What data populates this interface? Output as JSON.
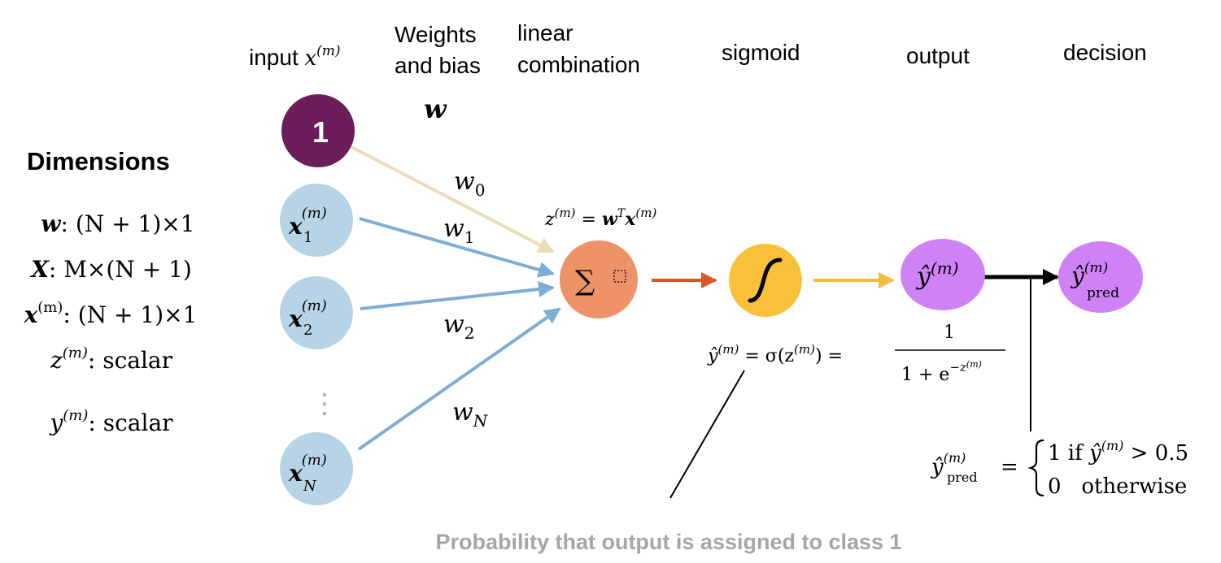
{
  "headers": {
    "input_prefix": "input ",
    "input_var": "x",
    "input_sup": "(m)",
    "weights_line1": "Weights",
    "weights_line2": "and bias",
    "linear_line1": "linear",
    "linear_line2": "combination",
    "sigmoid": "sigmoid",
    "output": "output",
    "decision": "decision"
  },
  "weight_symbol": "w",
  "dimensions": {
    "title": "Dimensions",
    "rows": [
      {
        "sym": "w",
        "sup": "",
        "bold": true,
        "rest": ": (N + 1)×1"
      },
      {
        "sym": "X",
        "sup": "",
        "bold": true,
        "rest": ": M×(N + 1)"
      },
      {
        "sym": "x",
        "sup": "(m)",
        "bold": true,
        "rest": ": (N + 1)×1"
      },
      {
        "sym": "z",
        "sup": "(m)",
        "bold": false,
        "rest": ": scalar"
      },
      {
        "sym": "y",
        "sup": "(m)",
        "bold": false,
        "rest": ": scalar"
      }
    ]
  },
  "nodes": {
    "bias": {
      "label": "1"
    },
    "inputs": [
      {
        "var": "x",
        "sup": "(m)",
        "sub": "1"
      },
      {
        "var": "x",
        "sup": "(m)",
        "sub": "2"
      },
      {
        "var": "x",
        "sup": "(m)",
        "sub": "N"
      }
    ],
    "ellipsis": "⋮",
    "sum": {
      "symbol": "∑",
      "box": "⬚"
    },
    "output": {
      "var": "ŷ",
      "sup": "(m)"
    },
    "decision": {
      "var": "ŷ",
      "sup": "(m)",
      "sub": "pred"
    }
  },
  "weights": [
    {
      "var": "w",
      "sub": "0"
    },
    {
      "var": "w",
      "sub": "1"
    },
    {
      "var": "w",
      "sub": "2"
    },
    {
      "var": "w",
      "sub": "N"
    }
  ],
  "equations": {
    "z_eq": {
      "lhs": "z",
      "lhs_sup": "(m)",
      "eq": " = ",
      "w": "w",
      "w_sup": "T",
      "x": "x",
      "x_sup": "(m)"
    },
    "sigmoid_eq": {
      "yhat": "ŷ",
      "sup": "(m)",
      "mid": " = σ(z",
      "mid_sup": "(m)",
      "close": ") = ",
      "numer": "1",
      "denom": "1 + e",
      "denom_sup": "−z",
      "denom_sup2": "(m)"
    },
    "decision_eq": {
      "lhs": "ŷ",
      "lhs_sup": "(m)",
      "lhs_sub": "pred",
      "eq": "=",
      "case1": "1 if ",
      "case1_var": "ŷ",
      "case1_sup": "(m)",
      "case1_tail": " > 0.5",
      "case2": "0   otherwise"
    }
  },
  "caption": "Probability that output is assigned to class 1",
  "colors": {
    "bias_node": "#6B1E5A",
    "input_node": "#B7D4E6",
    "sum_node": "#EE9268",
    "sigmoid_node": "#F9C13A",
    "output_node": "#CF82F5",
    "bias_arrow": "#EADDB8",
    "input_arrow": "#7EAED6",
    "sum_arrow": "#D8582A",
    "sigmoid_arrow": "#F3BE40",
    "caption": "#A6A6A6"
  }
}
